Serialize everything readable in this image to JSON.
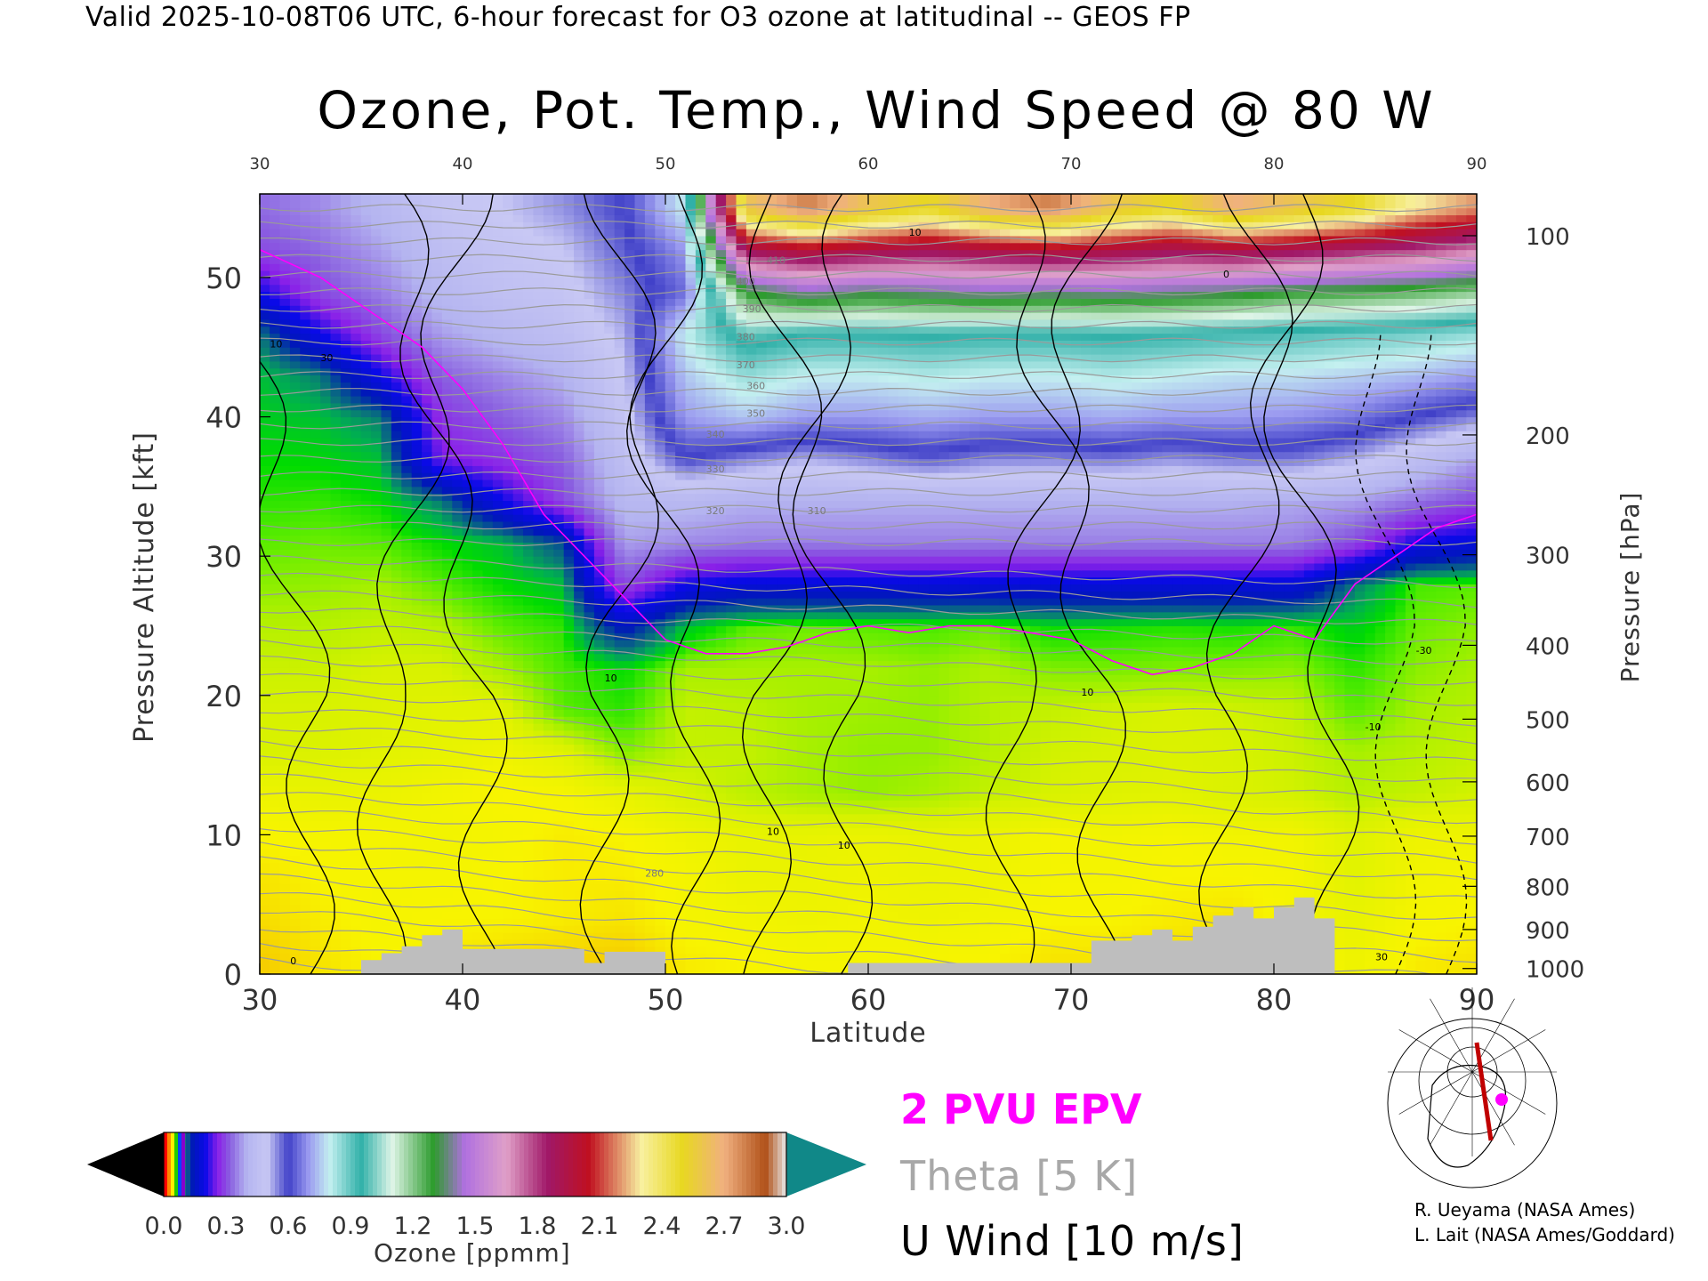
{
  "header": {
    "valid_line": "Valid 2025-10-08T06 UTC, 6-hour forecast for O3 ozone at latitudinal -- GEOS FP"
  },
  "chart_data": {
    "type": "heatmap",
    "title": "Ozone, Pot. Temp., Wind Speed @ 80 W",
    "xlabel": "Latitude",
    "ylabel": "Pressure Altitude [kft]",
    "y2label": "Pressure [hPa]",
    "xlim": [
      30,
      90
    ],
    "ylim": [
      0,
      56
    ],
    "x_ticks": [
      "30",
      "40",
      "50",
      "60",
      "70",
      "80",
      "90"
    ],
    "y_ticks": [
      "0",
      "10",
      "20",
      "30",
      "40",
      "50"
    ],
    "pressure_ticks": [
      {
        "label": "100",
        "kft": 53.0
      },
      {
        "label": "200",
        "kft": 38.7
      },
      {
        "label": "300",
        "kft": 30.1
      },
      {
        "label": "400",
        "kft": 23.6
      },
      {
        "label": "500",
        "kft": 18.3
      },
      {
        "label": "600",
        "kft": 13.8
      },
      {
        "label": "700",
        "kft": 9.9
      },
      {
        "label": "800",
        "kft": 6.3
      },
      {
        "label": "900",
        "kft": 3.2
      },
      {
        "label": "1000",
        "kft": 0.4
      }
    ],
    "ozone_ppmm": {
      "lat": [
        30,
        33,
        36,
        39,
        42,
        45,
        48,
        51,
        54,
        57,
        60,
        63,
        66,
        69,
        72,
        75,
        78,
        81,
        84,
        87,
        90
      ],
      "levels_kft": [
        1,
        4,
        7,
        10,
        13,
        16,
        19,
        22,
        25,
        28,
        31,
        34,
        37,
        40,
        43,
        46,
        49,
        52,
        55
      ],
      "values": [
        [
          0.03,
          0.033,
          0.035,
          0.034,
          0.032,
          0.031,
          0.03,
          0.034,
          0.035,
          0.036,
          0.036,
          0.036,
          0.035,
          0.033,
          0.033,
          0.032,
          0.032,
          0.034,
          0.038,
          0.034,
          0.033
        ],
        [
          0.032,
          0.034,
          0.036,
          0.035,
          0.035,
          0.034,
          0.033,
          0.036,
          0.037,
          0.038,
          0.037,
          0.038,
          0.037,
          0.035,
          0.035,
          0.034,
          0.033,
          0.036,
          0.04,
          0.036,
          0.035
        ],
        [
          0.033,
          0.035,
          0.036,
          0.036,
          0.035,
          0.034,
          0.034,
          0.036,
          0.039,
          0.039,
          0.038,
          0.039,
          0.038,
          0.036,
          0.036,
          0.035,
          0.035,
          0.036,
          0.042,
          0.037,
          0.036
        ],
        [
          0.035,
          0.036,
          0.036,
          0.037,
          0.036,
          0.034,
          0.035,
          0.038,
          0.04,
          0.04,
          0.039,
          0.04,
          0.039,
          0.036,
          0.037,
          0.036,
          0.037,
          0.037,
          0.043,
          0.038,
          0.038
        ],
        [
          0.038,
          0.04,
          0.039,
          0.037,
          0.035,
          0.036,
          0.04,
          0.045,
          0.049,
          0.052,
          0.054,
          0.052,
          0.048,
          0.045,
          0.043,
          0.042,
          0.044,
          0.046,
          0.05,
          0.048,
          0.046
        ],
        [
          0.045,
          0.044,
          0.042,
          0.04,
          0.038,
          0.042,
          0.056,
          0.048,
          0.048,
          0.052,
          0.054,
          0.054,
          0.05,
          0.046,
          0.045,
          0.044,
          0.045,
          0.047,
          0.052,
          0.05,
          0.048
        ],
        [
          0.045,
          0.045,
          0.043,
          0.042,
          0.042,
          0.06,
          0.065,
          0.048,
          0.049,
          0.052,
          0.053,
          0.054,
          0.05,
          0.048,
          0.046,
          0.045,
          0.046,
          0.048,
          0.06,
          0.052,
          0.05
        ],
        [
          0.047,
          0.047,
          0.045,
          0.045,
          0.052,
          0.062,
          0.07,
          0.052,
          0.052,
          0.052,
          0.052,
          0.054,
          0.051,
          0.056,
          0.057,
          0.056,
          0.056,
          0.055,
          0.065,
          0.055,
          0.052
        ],
        [
          0.05,
          0.05,
          0.048,
          0.05,
          0.06,
          0.065,
          0.15,
          0.078,
          0.06,
          0.058,
          0.06,
          0.062,
          0.058,
          0.07,
          0.068,
          0.066,
          0.068,
          0.064,
          0.075,
          0.058,
          0.055
        ],
        [
          0.055,
          0.054,
          0.052,
          0.06,
          0.07,
          0.08,
          0.3,
          0.2,
          0.18,
          0.18,
          0.18,
          0.18,
          0.18,
          0.18,
          0.18,
          0.18,
          0.18,
          0.18,
          0.1,
          0.062,
          0.06
        ],
        [
          0.06,
          0.058,
          0.06,
          0.07,
          0.08,
          0.12,
          0.38,
          0.36,
          0.35,
          0.35,
          0.35,
          0.35,
          0.35,
          0.35,
          0.35,
          0.35,
          0.35,
          0.35,
          0.3,
          0.2,
          0.18
        ],
        [
          0.065,
          0.064,
          0.07,
          0.1,
          0.2,
          0.3,
          0.42,
          0.42,
          0.4,
          0.4,
          0.4,
          0.4,
          0.4,
          0.4,
          0.4,
          0.4,
          0.4,
          0.39,
          0.38,
          0.34,
          0.3
        ],
        [
          0.07,
          0.072,
          0.08,
          0.25,
          0.28,
          0.32,
          0.45,
          0.6,
          0.55,
          0.52,
          0.55,
          0.58,
          0.55,
          0.55,
          0.56,
          0.54,
          0.56,
          0.56,
          0.52,
          0.45,
          0.38
        ],
        [
          0.075,
          0.08,
          0.1,
          0.28,
          0.32,
          0.36,
          0.48,
          0.7,
          0.75,
          0.7,
          0.7,
          0.72,
          0.7,
          0.7,
          0.72,
          0.7,
          0.7,
          0.69,
          0.66,
          0.6,
          0.55
        ],
        [
          0.08,
          0.1,
          0.2,
          0.32,
          0.36,
          0.4,
          0.5,
          0.75,
          0.85,
          0.8,
          0.8,
          0.82,
          0.8,
          0.8,
          0.82,
          0.8,
          0.78,
          0.78,
          0.76,
          0.74,
          0.7
        ],
        [
          0.1,
          0.2,
          0.3,
          0.38,
          0.42,
          0.45,
          0.52,
          0.8,
          1.0,
          0.95,
          0.95,
          0.96,
          0.95,
          0.95,
          0.96,
          0.95,
          0.93,
          0.92,
          0.9,
          0.88,
          0.85
        ],
        [
          0.2,
          0.3,
          0.35,
          0.42,
          0.46,
          0.48,
          0.55,
          0.65,
          1.3,
          1.4,
          1.35,
          1.38,
          1.4,
          1.38,
          1.4,
          1.38,
          1.35,
          1.3,
          1.28,
          1.25,
          1.2
        ],
        [
          0.3,
          0.33,
          0.38,
          0.45,
          0.48,
          0.5,
          0.58,
          0.7,
          1.9,
          2.0,
          1.95,
          1.9,
          1.95,
          2.0,
          1.95,
          1.9,
          1.95,
          1.9,
          1.85,
          1.8,
          1.7
        ],
        [
          0.33,
          0.36,
          0.42,
          0.48,
          0.5,
          0.54,
          0.6,
          0.8,
          2.6,
          2.8,
          2.6,
          2.5,
          2.7,
          2.8,
          2.6,
          2.5,
          2.7,
          2.6,
          2.5,
          2.3,
          2.2
        ]
      ]
    },
    "contour_labels": {
      "theta": [
        "340",
        "350",
        "360",
        "370",
        "380",
        "390",
        "400",
        "410",
        "330",
        "320",
        "310",
        "280"
      ],
      "u_wind": [
        "30",
        "10",
        "10",
        "10",
        "10",
        "10",
        "10",
        "0",
        "0",
        "-30",
        "-10",
        "30"
      ]
    },
    "colorbar": {
      "label": "Ozone [ppmm]",
      "ticks": [
        "0.0",
        "0.3",
        "0.6",
        "0.9",
        "1.2",
        "1.5",
        "1.8",
        "2.1",
        "2.4",
        "2.7",
        "3.0"
      ],
      "min": 0,
      "max": 3.0,
      "under_color": "#000000",
      "over_color": "#108888"
    },
    "legend": [
      "2 PVU EPV",
      "Theta [5 K]",
      "U Wind [10 m/s]"
    ],
    "legend_colors": {
      "epv": "#ff00ff",
      "theta": "#a8a8a8",
      "u_wind": "#000000",
      "terrain": "#bebebe"
    },
    "terrain_kft": {
      "lat": [
        30,
        34,
        35,
        36,
        37,
        38,
        39,
        40,
        43,
        44,
        46,
        47,
        49,
        50,
        51,
        59,
        60,
        70,
        71,
        72,
        73,
        74,
        75,
        76,
        77,
        78,
        79,
        80,
        81,
        82,
        83
      ],
      "height": [
        0,
        0,
        1,
        1.5,
        2,
        2.8,
        3.2,
        1.8,
        1.8,
        1.8,
        0.8,
        1.6,
        1.6,
        0,
        0,
        0.8,
        0.8,
        0.8,
        2.4,
        2.4,
        2.8,
        3.2,
        2.4,
        3.4,
        4.2,
        4.8,
        4.0,
        4.8,
        5.5,
        4.0,
        0
      ]
    }
  },
  "footer": {
    "credit1": "R. Ueyama (NASA Ames)",
    "credit2": "L. Lait (NASA Ames/Goddard)"
  }
}
